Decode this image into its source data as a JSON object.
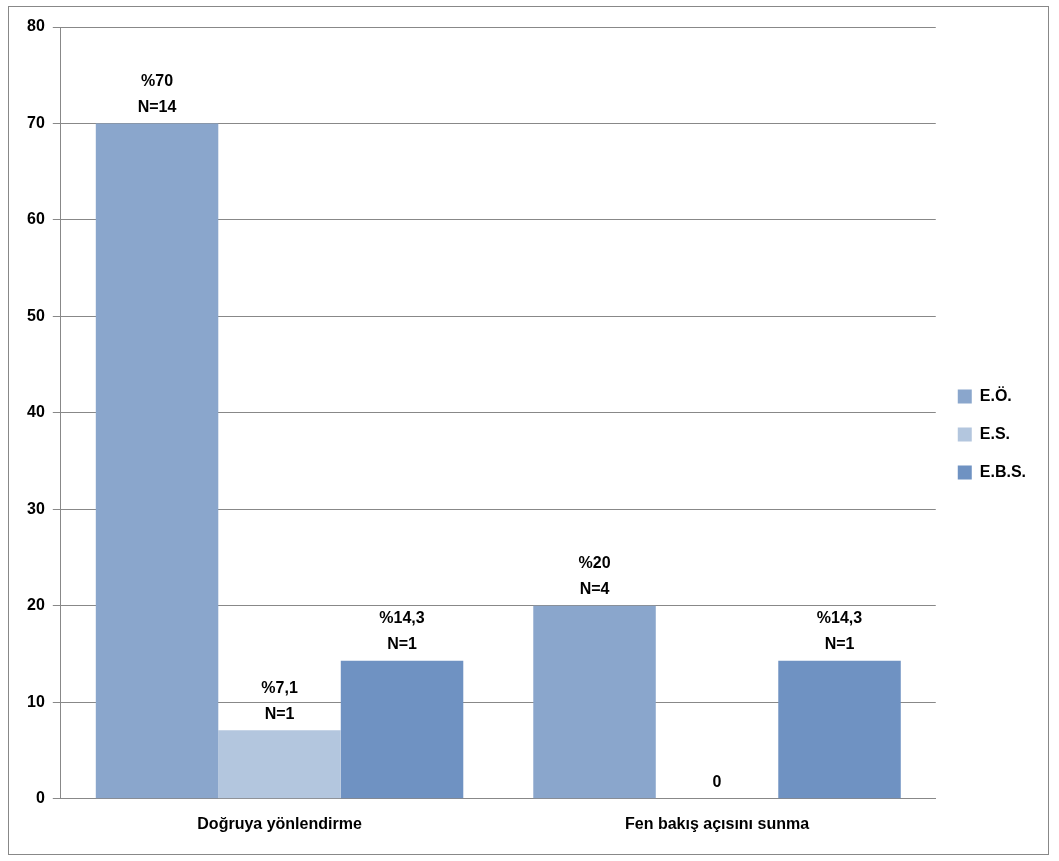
{
  "chart_data": {
    "type": "bar",
    "categories": [
      "Doğruya yönlendirme",
      "Fen bakış açısını sunma"
    ],
    "series": [
      {
        "name": "E.Ö.",
        "color": "#8aa6cc",
        "values": [
          70,
          20
        ],
        "value_labels": [
          "%70\nN=14",
          "%20\nN=4"
        ]
      },
      {
        "name": "E.S.",
        "color": "#b3c6de",
        "values": [
          7.1,
          0
        ],
        "value_labels": [
          "%7,1\nN=1",
          "0"
        ]
      },
      {
        "name": "E.B.S.",
        "color": "#6f92c2",
        "values": [
          14.3,
          14.3
        ],
        "value_labels": [
          "%14,3\nN=1",
          "%14,3\nN=1"
        ]
      }
    ],
    "ylim": [
      0,
      80
    ],
    "yticks": [
      0,
      10,
      20,
      30,
      40,
      50,
      60,
      70,
      80
    ],
    "grid": "y",
    "legend": "right"
  }
}
